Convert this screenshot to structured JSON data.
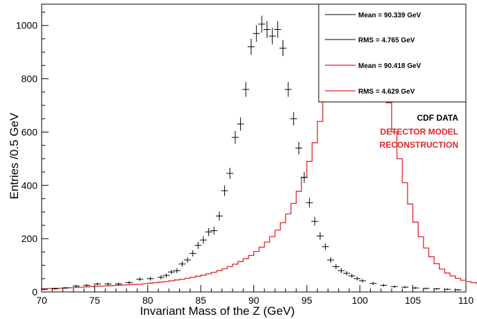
{
  "chart_data": {
    "type": "line",
    "xlabel": "Invariant Mass of the Z (GeV)",
    "ylabel": "Entries /0.5 GeV",
    "xlim": [
      70,
      110
    ],
    "ylim": [
      0,
      1080
    ],
    "x_ticks": [
      70,
      75,
      80,
      85,
      90,
      95,
      100,
      105,
      110
    ],
    "y_ticks": [
      0,
      200,
      400,
      600,
      800,
      1000
    ],
    "legend_position": "top-right",
    "colors": {
      "data": "#000000",
      "model": "#e0252a"
    },
    "legend": [
      {
        "label": "Mean = 90.339 GeV",
        "series": "data"
      },
      {
        "label": "RMS = 4.765 GeV",
        "series": "data"
      },
      {
        "label": "Mean = 90.418 GeV",
        "series": "model"
      },
      {
        "label": "RMS = 4.629 GeV",
        "series": "model"
      }
    ],
    "annotations": [
      {
        "text": "CDF DATA",
        "color": "#000000"
      },
      {
        "text": "DETECTOR MODEL",
        "color": "#e0252a"
      },
      {
        "text": "RECONSTRUCTION",
        "color": "#e0252a"
      }
    ],
    "series": [
      {
        "kind": "points",
        "x": [
          70.25,
          71.25,
          72.25,
          73.25,
          74.25,
          75.25,
          76.25,
          77.25,
          78.25,
          79.25,
          80.25,
          81.25,
          81.75,
          82.25,
          82.75,
          83.25,
          83.75,
          84.25,
          84.75,
          85.25,
          85.75,
          86.25,
          86.75,
          87.25,
          87.75,
          88.25,
          88.75,
          89.25,
          89.75,
          90.25,
          90.75,
          91.25,
          91.75,
          92.25,
          92.75,
          93.25,
          93.75,
          94.25,
          94.75,
          95.25,
          95.75,
          96.25,
          96.75,
          97.25,
          97.75,
          98.25,
          98.75,
          99.25,
          99.75,
          100.25,
          101.25,
          102.25,
          103.25,
          104.25,
          105.25,
          106.25,
          107.25,
          108.25,
          109.25
        ],
        "y": [
          10,
          12,
          15,
          22,
          25,
          30,
          30,
          30,
          35,
          48,
          50,
          55,
          62,
          75,
          80,
          105,
          120,
          145,
          175,
          195,
          225,
          230,
          285,
          380,
          445,
          580,
          630,
          760,
          920,
          970,
          1005,
          985,
          960,
          985,
          915,
          760,
          650,
          540,
          430,
          335,
          265,
          210,
          170,
          120,
          95,
          80,
          70,
          60,
          50,
          42,
          32,
          25,
          20,
          18,
          15,
          13,
          12,
          10,
          8
        ]
      },
      {
        "kind": "step",
        "edges_start": 70,
        "bin_width": 0.5,
        "values": [
          12,
          13,
          14,
          14,
          15,
          16,
          17,
          18,
          19,
          20,
          21,
          22,
          23,
          24,
          25,
          26,
          27,
          28,
          29,
          31,
          33,
          35,
          37,
          39,
          42,
          45,
          48,
          51,
          55,
          59,
          63,
          68,
          74,
          80,
          87,
          95,
          104,
          114,
          125,
          137,
          152,
          168,
          187,
          208,
          232,
          260,
          293,
          332,
          378,
          430,
          490,
          560,
          640,
          730,
          810,
          890,
          950,
          1000,
          1025,
          1030,
          1025,
          1005,
          970,
          900,
          810,
          710,
          600,
          500,
          410,
          330,
          262,
          207,
          165,
          132,
          106,
          86,
          71,
          60,
          51,
          44,
          39,
          35,
          32,
          29,
          27,
          25,
          23,
          21,
          20,
          18,
          17,
          16,
          15,
          14,
          13,
          12,
          11,
          10,
          9,
          9
        ]
      }
    ]
  }
}
